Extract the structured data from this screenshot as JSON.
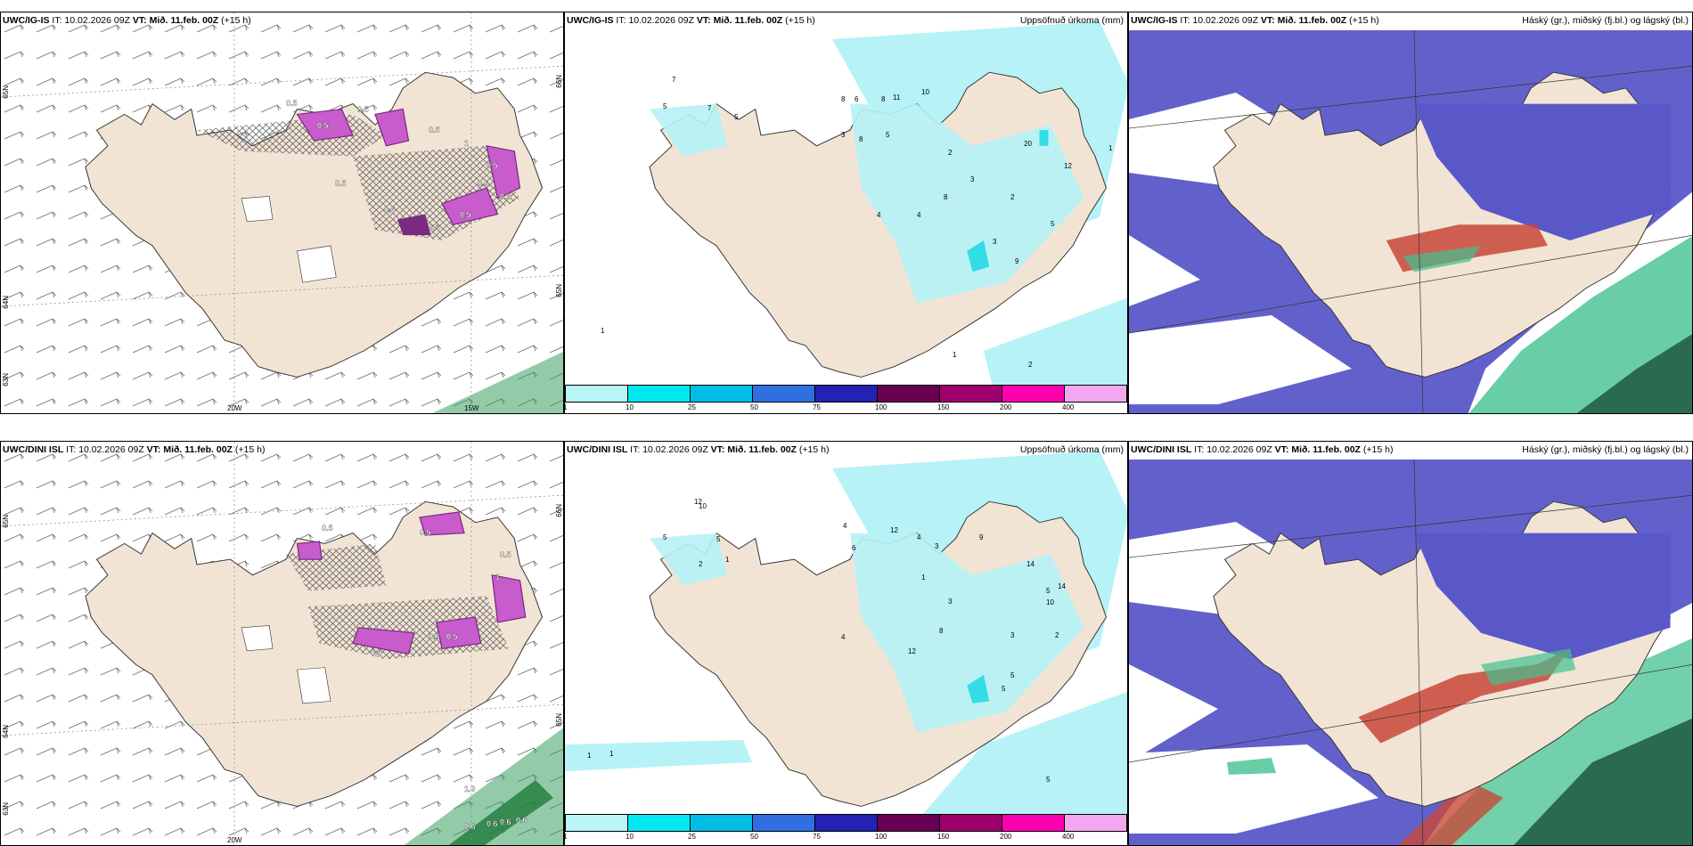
{
  "rows": [
    {
      "model": "UWC/IG-IS",
      "it_label": "IT:",
      "it_value": "10.02.2026 09Z",
      "vt_label": "VT:",
      "vt_value": "Mið. 11.feb. 00Z",
      "lead": "(+15 h)",
      "precip_title": "Uppsöfnuð úrkoma (mm)",
      "cloud_title": "Háský (gr.), miðský (fj.bl.) og lágský (bl.)",
      "lat_labels": [
        "65N",
        "64N",
        "63N"
      ],
      "lon_labels": [
        "20W",
        "15W"
      ],
      "lat_labels_right": [
        "66N",
        "65N"
      ],
      "snow_values": [
        "0.5",
        "0.5",
        "1",
        "0.5",
        "0.5",
        "0.5",
        "0.5",
        "0.5",
        "0.5",
        "0.6",
        "0.5",
        "0.5"
      ],
      "precip_values": [
        "7",
        "5",
        "7",
        "5",
        "8",
        "6",
        "8",
        "11",
        "10",
        "3",
        "8",
        "5",
        "2",
        "20",
        "3",
        "8",
        "12",
        "4",
        "2",
        "3",
        "5",
        "9",
        "4",
        "1",
        "1",
        "2",
        "1"
      ]
    },
    {
      "model": "UWC/DINI ISL",
      "it_label": "IT:",
      "it_value": "10.02.2026 09Z",
      "vt_label": "VT:",
      "vt_value": "Mið. 11.feb. 00Z",
      "lead": "(+15 h)",
      "precip_title": "Uppsöfnuð úrkoma (mm)",
      "cloud_title": "Háský (gr.), miðský (fj.bl.) og lágský (bl.)",
      "lat_labels": [
        "65N",
        "64N",
        "63N"
      ],
      "lon_labels": [
        "20W"
      ],
      "lat_labels_right": [
        "66N",
        "65N"
      ],
      "snow_values": [
        "0.5",
        "0.5",
        "1",
        "0.5",
        "0.6",
        "0.5",
        "0.5",
        "1.0",
        "0.6",
        "0.6",
        "0.6",
        "0.6"
      ],
      "precip_values": [
        "12",
        "5",
        "10",
        "5",
        "2",
        "1",
        "4",
        "6",
        "12",
        "4",
        "3",
        "1",
        "3",
        "8",
        "9",
        "5",
        "14",
        "10",
        "14",
        "3",
        "2",
        "5",
        "4",
        "12",
        "5",
        "1",
        "1",
        "5"
      ]
    }
  ],
  "colorbar": {
    "ticks": [
      "1",
      "10",
      "25",
      "50",
      "75",
      "100",
      "150",
      "200",
      "400"
    ],
    "colors": [
      "#b8f4f8",
      "#00e8ef",
      "#00bde6",
      "#2f6fe0",
      "#2222b4",
      "#6a0052",
      "#a0006e",
      "#ff00b0",
      "#f2a8ee"
    ]
  },
  "colors": {
    "land": "#f2e4d4",
    "precip_light": "#b6f2f6",
    "precip_cyan": "#33dde6",
    "snow_purple": "#c85ccc",
    "snow_dark": "#7a2a80",
    "cloud_high": "#5a58c8",
    "cloud_green": "#43c090",
    "cloud_red": "#c84838",
    "sea_green": "#3aa060"
  }
}
